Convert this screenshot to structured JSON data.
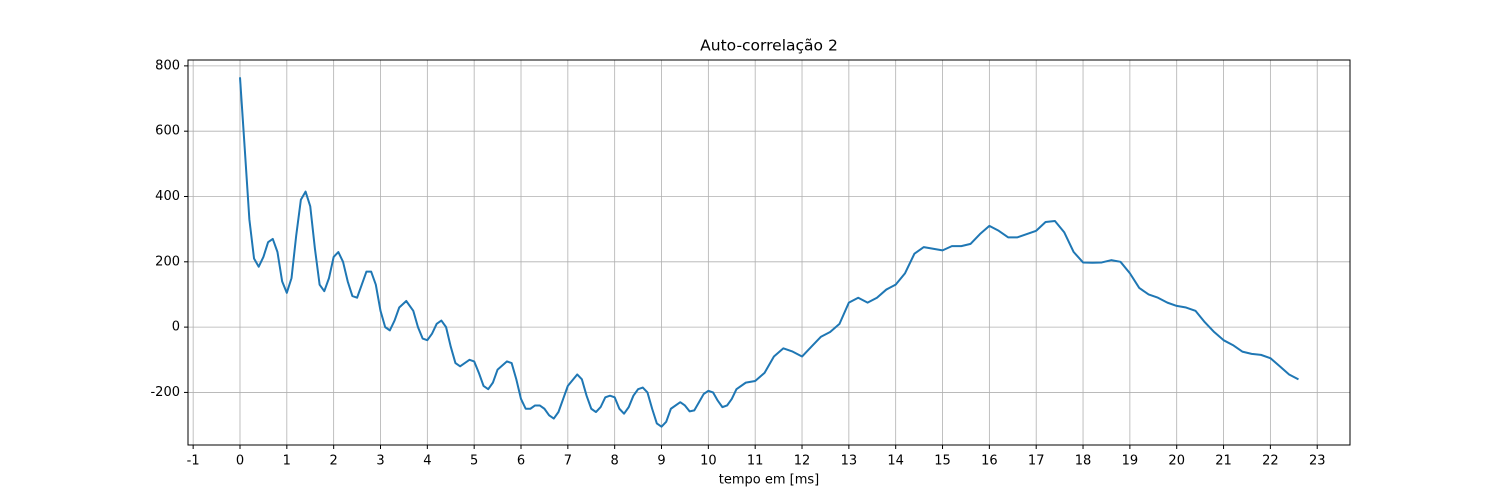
{
  "chart_data": {
    "type": "line",
    "title": "Auto-correlação 2",
    "x_label": "tempo em [ms]",
    "x": [
      0,
      0.1,
      0.2,
      0.3,
      0.4,
      0.5,
      0.6,
      0.7,
      0.8,
      0.9,
      1.0,
      1.1,
      1.2,
      1.3,
      1.4,
      1.5,
      1.6,
      1.7,
      1.8,
      1.9,
      2.0,
      2.1,
      2.2,
      2.3,
      2.4,
      2.5,
      2.6,
      2.7,
      2.8,
      2.9,
      3.0,
      3.1,
      3.2,
      3.3,
      3.4,
      3.55,
      3.7,
      3.8,
      3.9,
      4.0,
      4.1,
      4.2,
      4.3,
      4.4,
      4.5,
      4.6,
      4.7,
      4.8,
      4.9,
      5.0,
      5.1,
      5.2,
      5.3,
      5.4,
      5.5,
      5.7,
      5.8,
      5.9,
      6.0,
      6.1,
      6.2,
      6.3,
      6.4,
      6.5,
      6.6,
      6.7,
      6.8,
      6.9,
      7.0,
      7.2,
      7.3,
      7.4,
      7.5,
      7.6,
      7.7,
      7.8,
      7.9,
      8.0,
      8.1,
      8.2,
      8.3,
      8.4,
      8.5,
      8.6,
      8.7,
      8.8,
      8.9,
      9.0,
      9.1,
      9.2,
      9.4,
      9.5,
      9.6,
      9.7,
      9.8,
      9.9,
      10.0,
      10.1,
      10.2,
      10.3,
      10.4,
      10.5,
      10.6,
      10.8,
      11.0,
      11.2,
      11.4,
      11.6,
      11.8,
      12.0,
      12.2,
      12.4,
      12.6,
      12.8,
      13.0,
      13.2,
      13.4,
      13.6,
      13.8,
      14.0,
      14.2,
      14.4,
      14.6,
      14.8,
      15.0,
      15.2,
      15.4,
      15.6,
      15.8,
      16.0,
      16.2,
      16.4,
      16.6,
      16.8,
      17.0,
      17.2,
      17.4,
      17.6,
      17.8,
      18.0,
      18.2,
      18.4,
      18.6,
      18.8,
      19.0,
      19.2,
      19.4,
      19.6,
      19.8,
      20.0,
      20.2,
      20.4,
      20.6,
      20.8,
      21.0,
      21.2,
      21.4,
      21.6,
      21.8,
      22.0,
      22.2,
      22.4,
      22.6
    ],
    "series": [
      {
        "color": "#1f77b4",
        "values": [
          765,
          550,
          330,
          210,
          185,
          215,
          260,
          270,
          230,
          140,
          105,
          150,
          280,
          390,
          415,
          370,
          240,
          130,
          110,
          150,
          215,
          230,
          200,
          140,
          95,
          90,
          130,
          170,
          170,
          130,
          50,
          0,
          -10,
          20,
          60,
          80,
          50,
          0,
          -35,
          -40,
          -20,
          10,
          20,
          0,
          -60,
          -110,
          -120,
          -110,
          -100,
          -105,
          -140,
          -180,
          -190,
          -170,
          -130,
          -105,
          -110,
          -160,
          -220,
          -250,
          -250,
          -240,
          -240,
          -250,
          -270,
          -280,
          -260,
          -220,
          -180,
          -145,
          -160,
          -210,
          -250,
          -260,
          -245,
          -215,
          -210,
          -215,
          -250,
          -265,
          -245,
          -210,
          -190,
          -185,
          -200,
          -250,
          -295,
          -305,
          -290,
          -250,
          -230,
          -240,
          -258,
          -255,
          -230,
          -205,
          -195,
          -200,
          -225,
          -245,
          -240,
          -220,
          -190,
          -170,
          -165,
          -140,
          -90,
          -65,
          -75,
          -90,
          -60,
          -30,
          -15,
          10,
          75,
          90,
          75,
          90,
          115,
          130,
          165,
          225,
          245,
          240,
          235,
          248,
          248,
          255,
          285,
          310,
          295,
          275,
          275,
          285,
          295,
          322,
          325,
          290,
          230,
          198,
          197,
          198,
          205,
          200,
          165,
          120,
          100,
          90,
          75,
          65,
          60,
          50,
          15,
          -15,
          -40,
          -55,
          -75,
          -82,
          -85,
          -95,
          -120,
          -145,
          -160
        ]
      }
    ],
    "xlim": [
      -1.11,
      23.7
    ],
    "ylim": [
      -361,
      818
    ],
    "xticks": [
      -1,
      0,
      1,
      2,
      3,
      4,
      5,
      6,
      7,
      8,
      9,
      10,
      11,
      12,
      13,
      14,
      15,
      16,
      17,
      18,
      19,
      20,
      21,
      22,
      23
    ],
    "yticks": [
      -200,
      0,
      200,
      400,
      600,
      800
    ],
    "grid": true
  }
}
